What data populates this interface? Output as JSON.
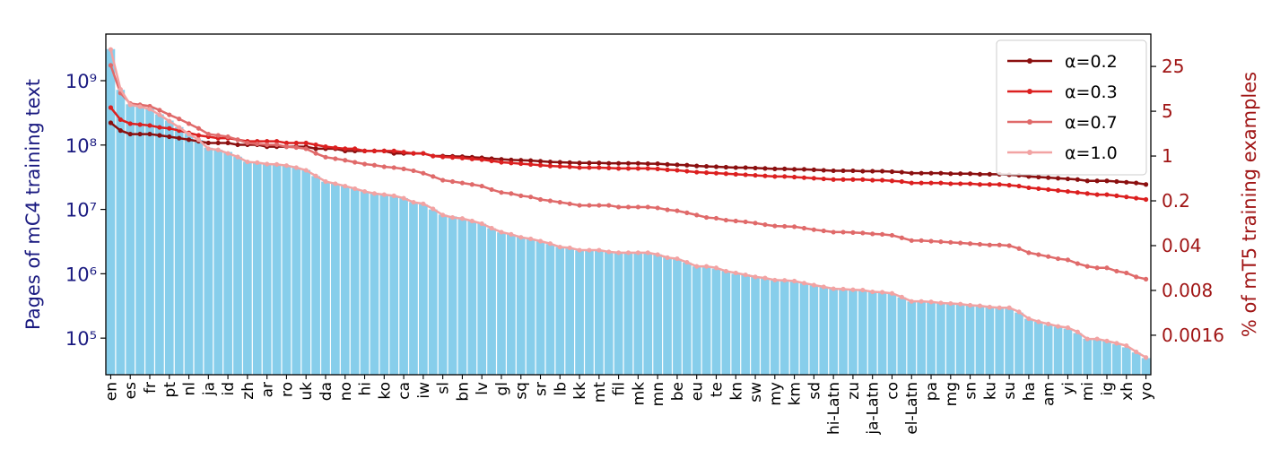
{
  "chart_data": {
    "type": "bar",
    "y_label": "Pages of mC4 training text",
    "y2_label": "% of mT5 training examples",
    "categories": [
      "en",
      null,
      "es",
      null,
      "fr",
      null,
      "pt",
      null,
      "nl",
      null,
      "ja",
      null,
      "id",
      null,
      "zh",
      null,
      "ar",
      null,
      "ro",
      null,
      "uk",
      null,
      "da",
      null,
      "no",
      null,
      "hi",
      null,
      "ko",
      null,
      "ca",
      null,
      "iw",
      null,
      "sl",
      null,
      "bn",
      null,
      "lv",
      null,
      "gl",
      null,
      "sq",
      null,
      "sr",
      null,
      "lb",
      null,
      "kk",
      null,
      "mt",
      null,
      "fil",
      null,
      "mk",
      null,
      "mn",
      null,
      "be",
      null,
      "eu",
      null,
      "te",
      null,
      "kn",
      null,
      "sw",
      null,
      "my",
      null,
      "km",
      null,
      "sd",
      null,
      "hi-Latn",
      null,
      "zu",
      null,
      "ja-Latn",
      null,
      "co",
      null,
      "el-Latn",
      null,
      "pa",
      null,
      "mg",
      null,
      "sn",
      null,
      "ku",
      null,
      "su",
      null,
      "ha",
      null,
      "am",
      null,
      "yi",
      null,
      "mi",
      null,
      "ig",
      null,
      "xh",
      null,
      "yo"
    ],
    "values": [
      3100000000.0,
      720000000.0,
      430000000.0,
      400000000.0,
      370000000.0,
      300000000.0,
      240000000.0,
      190000000.0,
      150000000.0,
      120000000.0,
      91000000.0,
      85000000.0,
      78000000.0,
      66000000.0,
      55000000.0,
      54000000.0,
      51000000.0,
      50000000.0,
      48000000.0,
      45000000.0,
      41000000.0,
      33000000.0,
      27000000.0,
      25000000.0,
      23000000.0,
      21000000.0,
      19000000.0,
      18000000.0,
      17000000.0,
      16000000.0,
      15000000.0,
      13000000.0,
      12000000.0,
      10000000.0,
      8300000.0,
      7800000.0,
      7200000.0,
      6600000.0,
      6000000.0,
      5100000.0,
      4400000.0,
      4100000.0,
      3700000.0,
      3500000.0,
      3200000.0,
      2900000.0,
      2600000.0,
      2500000.0,
      2300000.0,
      2300000.0,
      2300000.0,
      2200000.0,
      2100000.0,
      2100000.0,
      2100000.0,
      2100000.0,
      2000000.0,
      1800000.0,
      1700000.0,
      1500000.0,
      1300000.0,
      1300000.0,
      1200000.0,
      1100000.0,
      1000000.0,
      980000.0,
      910000.0,
      850000.0,
      790000.0,
      780000.0,
      760000.0,
      710000.0,
      660000.0,
      620000.0,
      580000.0,
      570000.0,
      560000.0,
      550000.0,
      520000.0,
      510000.0,
      490000.0,
      430000.0,
      370000.0,
      370000.0,
      360000.0,
      350000.0,
      340000.0,
      330000.0,
      320000.0,
      310000.0,
      300000.0,
      290000.0,
      290000.0,
      250000.0,
      200000.0,
      180000.0,
      160000.0,
      150000.0,
      140000.0,
      120000.0,
      98000.0,
      95000.0,
      91000.0,
      81000.0,
      72000.0,
      60000.0,
      49000.0
    ],
    "color": "#87ceeb",
    "series": [
      {
        "name": "α=0.2",
        "color": "#8b1010",
        "axis": "y2",
        "values": [
          3.3,
          2.5,
          2.2,
          2.2,
          2.2,
          2.1,
          2.0,
          1.9,
          1.8,
          1.7,
          1.6,
          1.6,
          1.6,
          1.5,
          1.5,
          1.5,
          1.4,
          1.4,
          1.4,
          1.4,
          1.4,
          1.3,
          1.3,
          1.3,
          1.2,
          1.2,
          1.2,
          1.2,
          1.2,
          1.1,
          1.1,
          1.1,
          1.1,
          1.0,
          1.0,
          0.99,
          0.98,
          0.96,
          0.94,
          0.91,
          0.89,
          0.87,
          0.86,
          0.85,
          0.83,
          0.81,
          0.8,
          0.79,
          0.78,
          0.78,
          0.78,
          0.77,
          0.77,
          0.77,
          0.77,
          0.76,
          0.76,
          0.74,
          0.73,
          0.72,
          0.7,
          0.69,
          0.68,
          0.67,
          0.66,
          0.66,
          0.65,
          0.64,
          0.63,
          0.63,
          0.62,
          0.62,
          0.61,
          0.6,
          0.59,
          0.59,
          0.59,
          0.58,
          0.58,
          0.58,
          0.57,
          0.56,
          0.54,
          0.54,
          0.54,
          0.54,
          0.53,
          0.53,
          0.53,
          0.52,
          0.52,
          0.52,
          0.51,
          0.5,
          0.48,
          0.47,
          0.46,
          0.45,
          0.44,
          0.43,
          0.41,
          0.41,
          0.41,
          0.4,
          0.39,
          0.38,
          0.36
        ]
      },
      {
        "name": "α=0.3",
        "color": "#dc2020",
        "axis": "y2",
        "values": [
          5.7,
          3.7,
          3.2,
          3.1,
          3.0,
          2.8,
          2.7,
          2.5,
          2.3,
          2.1,
          2.0,
          1.9,
          1.9,
          1.8,
          1.7,
          1.7,
          1.7,
          1.7,
          1.6,
          1.6,
          1.6,
          1.5,
          1.4,
          1.35,
          1.3,
          1.3,
          1.2,
          1.2,
          1.2,
          1.2,
          1.15,
          1.1,
          1.1,
          1.0,
          0.97,
          0.95,
          0.93,
          0.9,
          0.88,
          0.84,
          0.8,
          0.78,
          0.76,
          0.74,
          0.72,
          0.7,
          0.69,
          0.68,
          0.66,
          0.66,
          0.66,
          0.65,
          0.64,
          0.64,
          0.64,
          0.64,
          0.63,
          0.61,
          0.6,
          0.58,
          0.56,
          0.55,
          0.54,
          0.53,
          0.52,
          0.51,
          0.5,
          0.49,
          0.48,
          0.48,
          0.47,
          0.46,
          0.45,
          0.44,
          0.43,
          0.43,
          0.43,
          0.43,
          0.42,
          0.42,
          0.41,
          0.4,
          0.38,
          0.38,
          0.38,
          0.38,
          0.37,
          0.37,
          0.37,
          0.36,
          0.36,
          0.36,
          0.35,
          0.34,
          0.32,
          0.31,
          0.3,
          0.29,
          0.28,
          0.27,
          0.26,
          0.25,
          0.25,
          0.24,
          0.23,
          0.22,
          0.21
        ]
      },
      {
        "name": "α=0.7",
        "color": "#e06a6a",
        "axis": "y2",
        "values": [
          26,
          9.6,
          6.6,
          6.3,
          6.0,
          5.2,
          4.4,
          3.8,
          3.2,
          2.7,
          2.2,
          2.1,
          2.0,
          1.8,
          1.6,
          1.55,
          1.5,
          1.5,
          1.4,
          1.36,
          1.3,
          1.1,
          0.96,
          0.91,
          0.86,
          0.8,
          0.75,
          0.72,
          0.68,
          0.66,
          0.63,
          0.59,
          0.54,
          0.48,
          0.42,
          0.4,
          0.38,
          0.36,
          0.34,
          0.3,
          0.27,
          0.26,
          0.24,
          0.23,
          0.21,
          0.2,
          0.19,
          0.18,
          0.17,
          0.17,
          0.17,
          0.17,
          0.16,
          0.16,
          0.16,
          0.16,
          0.155,
          0.145,
          0.14,
          0.13,
          0.12,
          0.11,
          0.107,
          0.1,
          0.097,
          0.094,
          0.09,
          0.085,
          0.081,
          0.08,
          0.079,
          0.075,
          0.071,
          0.068,
          0.065,
          0.065,
          0.064,
          0.063,
          0.061,
          0.06,
          0.058,
          0.053,
          0.048,
          0.048,
          0.047,
          0.046,
          0.045,
          0.044,
          0.043,
          0.042,
          0.041,
          0.041,
          0.04,
          0.036,
          0.031,
          0.029,
          0.027,
          0.025,
          0.024,
          0.021,
          0.019,
          0.018,
          0.018,
          0.016,
          0.015,
          0.013,
          0.012
        ]
      },
      {
        "name": "α=1.0",
        "color": "#f2a3a3",
        "axis": "y2",
        "values": [
          46,
          11,
          6.3,
          5.9,
          5.4,
          4.4,
          3.5,
          2.8,
          2.2,
          1.8,
          1.3,
          1.25,
          1.1,
          0.97,
          0.81,
          0.79,
          0.75,
          0.74,
          0.71,
          0.66,
          0.6,
          0.49,
          0.4,
          0.37,
          0.34,
          0.31,
          0.28,
          0.26,
          0.25,
          0.24,
          0.22,
          0.19,
          0.18,
          0.15,
          0.12,
          0.11,
          0.106,
          0.097,
          0.088,
          0.075,
          0.065,
          0.06,
          0.054,
          0.051,
          0.047,
          0.043,
          0.038,
          0.037,
          0.034,
          0.034,
          0.034,
          0.032,
          0.031,
          0.031,
          0.031,
          0.031,
          0.029,
          0.026,
          0.025,
          0.022,
          0.019,
          0.019,
          0.018,
          0.016,
          0.015,
          0.014,
          0.013,
          0.0125,
          0.0116,
          0.0115,
          0.0112,
          0.0104,
          0.0097,
          0.0091,
          0.0085,
          0.0084,
          0.0082,
          0.0081,
          0.0076,
          0.0075,
          0.0072,
          0.0063,
          0.0054,
          0.0054,
          0.0053,
          0.0051,
          0.005,
          0.0049,
          0.0047,
          0.0046,
          0.0044,
          0.0043,
          0.0043,
          0.0037,
          0.0029,
          0.0026,
          0.0024,
          0.0022,
          0.0021,
          0.0018,
          0.0014,
          0.0014,
          0.0013,
          0.0012,
          0.0011,
          0.00088,
          0.00072
        ]
      }
    ],
    "ylim": [
      27000.0,
      5300000000.0
    ],
    "yticks": [
      {
        "value": 100000.0,
        "label": "10⁵"
      },
      {
        "value": 1000000.0,
        "label": "10⁶"
      },
      {
        "value": 10000000.0,
        "label": "10⁷"
      },
      {
        "value": 100000000.0,
        "label": "10⁸"
      },
      {
        "value": 1000000000.0,
        "label": "10⁹"
      }
    ],
    "ylog": true,
    "y2lim": [
      0.000387,
      80
    ],
    "y2ticks": [
      0.0016,
      0.008,
      0.04,
      0.2,
      1,
      5,
      25
    ],
    "y2log": true,
    "legend": "upper right"
  }
}
